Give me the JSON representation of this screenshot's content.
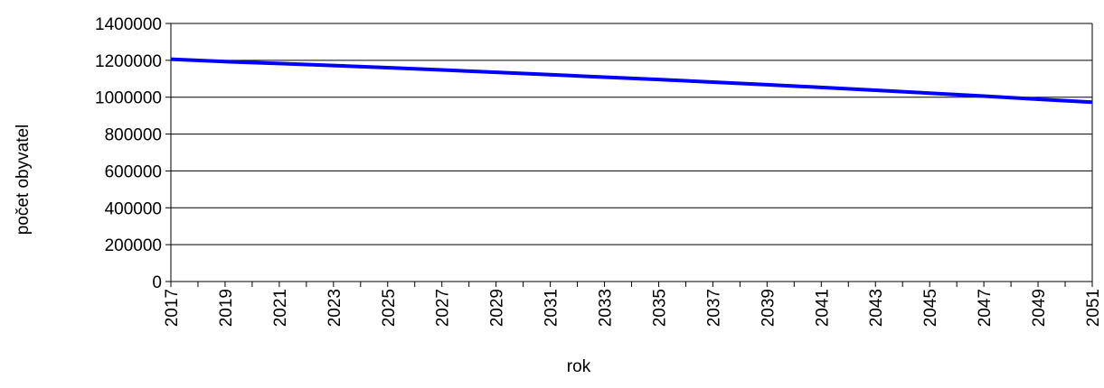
{
  "chart_data": {
    "type": "line",
    "title": "",
    "xlabel": "rok",
    "ylabel": "počet obyvatel",
    "xlim": [
      2017,
      2051
    ],
    "ylim": [
      0,
      1400000
    ],
    "y_ticks": [
      0,
      200000,
      400000,
      600000,
      800000,
      1000000,
      1200000,
      1400000
    ],
    "y_tick_labels": [
      "0",
      "200000",
      "400000",
      "600000",
      "800000",
      "1000000",
      "1200000",
      "1400000"
    ],
    "x_tick_labels": [
      "2017",
      "2019",
      "2021",
      "2023",
      "2025",
      "2027",
      "2029",
      "2031",
      "2033",
      "2035",
      "2037",
      "2039",
      "2041",
      "2043",
      "2045",
      "2047",
      "2049",
      "2051"
    ],
    "grid": "horizontal",
    "legend": "none",
    "colors": {
      "line": "#0000ff",
      "grid": "#000000",
      "background": "#ffffff"
    },
    "series": [
      {
        "x": [
          2017,
          2019,
          2021,
          2023,
          2025,
          2027,
          2029,
          2031,
          2033,
          2035,
          2037,
          2039,
          2041,
          2043,
          2045,
          2047,
          2049,
          2051
        ],
        "values": [
          1206000,
          1193000,
          1183000,
          1172000,
          1160000,
          1148000,
          1135000,
          1122000,
          1109000,
          1096000,
          1082000,
          1068000,
          1053000,
          1038000,
          1022000,
          1006000,
          989000,
          973000
        ]
      }
    ]
  }
}
